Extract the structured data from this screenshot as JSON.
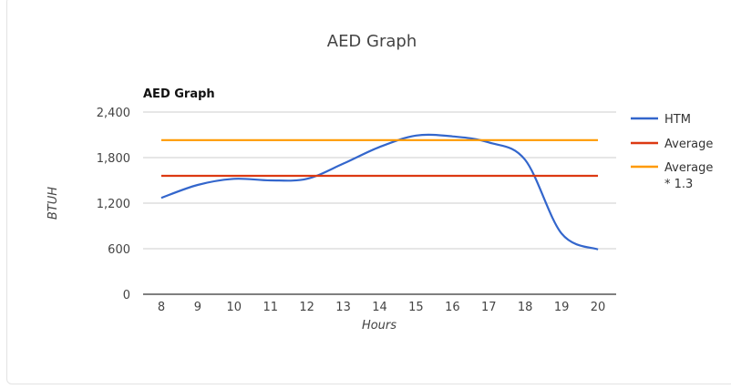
{
  "card": {
    "title": "AED Graph"
  },
  "colors": {
    "HTM": "#3366cc",
    "Average": "#dc3912",
    "Average13": "#ff9900",
    "grid": "#cccccc",
    "axis": "#333333"
  },
  "chart_data": {
    "type": "line",
    "title": "AED Graph",
    "xlabel": "Hours",
    "ylabel": "BTUH",
    "x": [
      8,
      9,
      10,
      11,
      12,
      13,
      14,
      15,
      16,
      17,
      18,
      19,
      20
    ],
    "xlim": [
      7.5,
      20.5
    ],
    "ylim": [
      0,
      2400
    ],
    "yticks": [
      0,
      600,
      1200,
      1800,
      2400
    ],
    "yticklabels": [
      "0",
      "600",
      "1,200",
      "1,800",
      "2,400"
    ],
    "xticklabels": [
      "8",
      "9",
      "10",
      "11",
      "12",
      "13",
      "14",
      "15",
      "16",
      "17",
      "18",
      "19",
      "20"
    ],
    "grid": true,
    "legend": "right",
    "series": [
      {
        "name": "HTM",
        "values": [
          1270,
          1440,
          1520,
          1500,
          1520,
          1720,
          1940,
          2090,
          2080,
          2000,
          1770,
          800,
          590
        ]
      },
      {
        "name": "Average",
        "values": [
          1560,
          1560,
          1560,
          1560,
          1560,
          1560,
          1560,
          1560,
          1560,
          1560,
          1560,
          1560,
          1560
        ]
      },
      {
        "name": "Average\n* 1.3",
        "values": [
          2030,
          2030,
          2030,
          2030,
          2030,
          2030,
          2030,
          2030,
          2030,
          2030,
          2030,
          2030,
          2030
        ]
      }
    ]
  }
}
